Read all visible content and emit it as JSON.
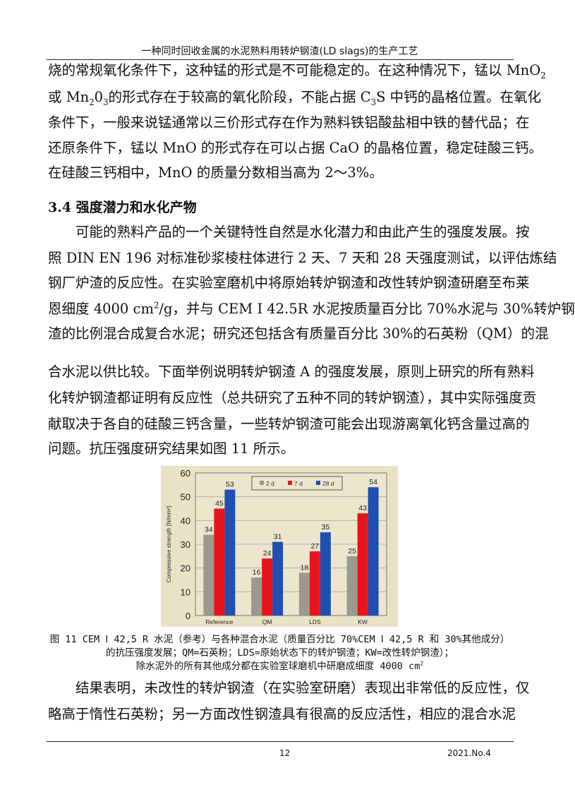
{
  "header": {
    "title": "一种同时回收金属的水泥熟料用转炉钢渣(LD slags)的生产工艺"
  },
  "para1": [
    "烧的常规氧化条件下，这种锰的形式是不可能稳定的。在这种情况下，锰以 MnO",
    "或 Mn",
    "的形式存在于较高的氧化阶段，不能占据 C",
    "S 中钙的晶格位置。在氧化",
    "条件下，一般来说锰通常以三价形式存在作为熟料铁铝酸盐相中铁的替代品；在",
    "还原条件下，锰以 MnO 的形式存在可以占据 CaO 的晶格位置，稳定硅酸三钙。",
    "在硅酸三钙相中，MnO 的质量分数相当高为 2～3%。"
  ],
  "subs": {
    "two": "2",
    "three": "3",
    "zero3": "0"
  },
  "heading": "3.4 强度潜力和水化产物",
  "para2": [
    "　　可能的熟料产品的一个关键特性自然是水化潜力和由此产生的强度发展。按",
    "照 DIN  EN  196 对标准砂浆棱柱体进行 2 天、7 天和 28 天强度测试，以评估炼结",
    "钢厂炉渣的反应性。在实验室磨机中将原始转炉钢渣和改性转炉钢渣研磨至布莱",
    "恩细度 4000 cm",
    "/g，并与 CEM I 42.5R 水泥按质量百分比 70%水泥与 30%转炉钢",
    "渣的比例混合成复合水泥；研究还包括含有质量百分比 30%的石英粉（QM）的混",
    "合水泥以供比较。下面举例说明转炉钢渣 A 的强度发展，原则上研究的所有熟料",
    "化转炉钢渣都证明有反应性（总共研究了五种不同的转炉钢渣），其中实际强度贡",
    "献取决于各自的硅酸三钙含量，一些转炉钢渣可能会出现游离氧化钙含量过高的",
    "问题。抗压强度研究结果如图 11 所示。"
  ],
  "caption": [
    "图 11 CEM Ⅰ 42,5 R 水泥（参考）与各种混合水泥（质量百分比 70%CEM Ⅰ 42,5 R 和 30%其他成分）",
    "的抗压强度发展；QM=石英粉；LDS=原始状态下的转炉钢渣；KW=改性转炉钢渣）；",
    "除水泥外的所有其他成分都在实验室球磨机中研磨成细度 4000 cm"
  ],
  "para3": [
    "　　结果表明，未改性的转炉钢渣（在实验室研磨）表现出非常低的反应性，仅",
    "略高于惰性石英粉；另一方面改性钢渣具有很高的反应活性，相应的混合水泥"
  ],
  "footer": {
    "page": "12",
    "issue": "2021.No.4"
  },
  "chart_data": {
    "type": "bar",
    "categories": [
      "Reference",
      "QM",
      "LDS",
      "KW"
    ],
    "series": [
      {
        "name": "2 d",
        "values": [
          34,
          16,
          18,
          25
        ],
        "color": "#9a9a90"
      },
      {
        "name": "7 d",
        "values": [
          45,
          24,
          27,
          43
        ],
        "color": "#e8141a"
      },
      {
        "name": "28 d",
        "values": [
          53,
          31,
          35,
          54
        ],
        "color": "#1f4fb0"
      }
    ],
    "ylabel": "Compressive strength [N/mm²]",
    "ylim": [
      0,
      60
    ],
    "yticks": [
      "0",
      "10",
      "20",
      "30",
      "40",
      "50",
      "60"
    ],
    "grid": true,
    "legend": "top-center",
    "background": "#e9e3c6"
  }
}
